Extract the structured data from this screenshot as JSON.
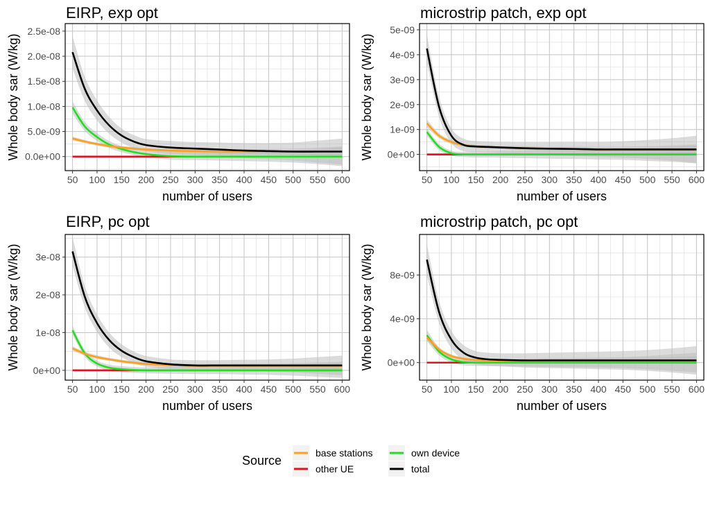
{
  "legend": {
    "title": "Source",
    "entries": [
      {
        "label": "base stations",
        "color": "#FF9F1A"
      },
      {
        "label": "other UE",
        "color": "#E8111B"
      },
      {
        "label": "own device",
        "color": "#1EE01E"
      },
      {
        "label": "total",
        "color": "#000000"
      }
    ]
  },
  "chart_data": [
    {
      "type": "line",
      "title": "EIRP, exp opt",
      "xlabel": "number of users",
      "ylabel": "Whole body sar (W/kg)",
      "xlim": [
        35,
        615
      ],
      "ylim": [
        -2.8e-09,
        2.65e-08
      ],
      "x_ticks": [
        50,
        100,
        150,
        200,
        250,
        300,
        350,
        400,
        450,
        500,
        550,
        600
      ],
      "y_ticks": [
        0,
        5e-09,
        1e-08,
        1.5e-08,
        2e-08,
        2.5e-08
      ],
      "y_tick_labels": [
        "0.0e+00",
        "5.0e-09",
        "1.0e-08",
        "1.5e-08",
        "2.0e-08",
        "2.5e-08"
      ],
      "x": [
        50,
        75,
        100,
        125,
        150,
        175,
        200,
        250,
        300,
        350,
        400,
        450,
        500,
        550,
        600
      ],
      "series": [
        {
          "name": "base stations",
          "values": [
            3.6e-09,
            3e-09,
            2.5e-09,
            2.1e-09,
            1.8e-09,
            1.6e-09,
            1.4e-09,
            1.2e-09,
            1.1e-09,
            1e-09,
            1e-09,
            1e-09,
            1e-09,
            1e-09,
            1e-09
          ],
          "band": [
            4e-10,
            3e-10,
            3e-10,
            3e-10,
            3e-10,
            3e-10,
            3e-10,
            4e-10,
            4e-10,
            4e-10,
            5e-10,
            5e-10,
            6e-10,
            8e-10,
            1e-09
          ]
        },
        {
          "name": "other UE",
          "values": [
            0,
            0,
            0,
            0,
            0,
            0,
            0,
            0,
            0,
            0,
            0,
            0,
            0,
            0,
            0
          ],
          "band": [
            2e-10,
            2e-10,
            2e-10,
            2e-10,
            2e-10,
            2e-10,
            2e-10,
            2e-10,
            2e-10,
            2e-10,
            2e-10,
            2e-10,
            2e-10,
            2e-10,
            2e-10
          ]
        },
        {
          "name": "own device",
          "values": [
            9.8e-09,
            6e-09,
            3.9e-09,
            2.4e-09,
            1.5e-09,
            9e-10,
            5e-10,
            1e-10,
            0,
            0,
            0,
            0,
            0,
            0,
            0
          ],
          "band": [
            1.2e-09,
            9e-10,
            8e-10,
            7e-10,
            6e-10,
            6e-10,
            6e-10,
            7e-10,
            7e-10,
            8e-10,
            9e-10,
            1e-09,
            1.2e-09,
            1.5e-09,
            1.9e-09
          ]
        },
        {
          "name": "total",
          "values": [
            2.08e-08,
            1.35e-08,
            9.2e-09,
            6.2e-09,
            4.2e-09,
            3e-09,
            2.3e-09,
            1.8e-09,
            1.6e-09,
            1.4e-09,
            1.2e-09,
            1.1e-09,
            1e-09,
            1e-09,
            1e-09
          ],
          "band": [
            3.2e-09,
            2.4e-09,
            2e-09,
            1.7e-09,
            1.4e-09,
            1.3e-09,
            1.2e-09,
            1.3e-09,
            1.3e-09,
            1.4e-09,
            1.5e-09,
            1.6e-09,
            1.8e-09,
            2.2e-09,
            2.6e-09
          ]
        }
      ]
    },
    {
      "type": "line",
      "title": "microstrip patch, exp opt",
      "xlabel": "number of users",
      "ylabel": "Whole body sar (W/kg)",
      "xlim": [
        35,
        615
      ],
      "ylim": [
        -6.5e-10,
        5.25e-09
      ],
      "x_ticks": [
        50,
        100,
        150,
        200,
        250,
        300,
        350,
        400,
        450,
        500,
        550,
        600
      ],
      "y_ticks": [
        0,
        1e-09,
        2e-09,
        3e-09,
        4e-09,
        5e-09
      ],
      "y_tick_labels": [
        "0e+00",
        "1e-09",
        "2e-09",
        "3e-09",
        "4e-09",
        "5e-09"
      ],
      "x": [
        50,
        75,
        100,
        125,
        150,
        175,
        200,
        250,
        300,
        350,
        400,
        450,
        500,
        550,
        600
      ],
      "series": [
        {
          "name": "base stations",
          "values": [
            1.25e-09,
            7.5e-10,
            5e-10,
            3.8e-10,
            3.2e-10,
            3e-10,
            2.8e-10,
            2.5e-10,
            2.3e-10,
            2.2e-10,
            2e-10,
            2e-10,
            2e-10,
            2e-10,
            2e-10
          ],
          "band": [
            1.5e-10,
            1e-10,
            8e-11,
            7e-11,
            7e-11,
            7e-11,
            7e-11,
            8e-11,
            8e-11,
            9e-11,
            1e-10,
            1.1e-10,
            1.3e-10,
            1.6e-10,
            2e-10
          ]
        },
        {
          "name": "other UE",
          "values": [
            0,
            0,
            0,
            0,
            0,
            0,
            0,
            0,
            0,
            0,
            0,
            0,
            0,
            0,
            0
          ],
          "band": [
            5e-11,
            5e-11,
            5e-11,
            5e-11,
            5e-11,
            5e-11,
            5e-11,
            5e-11,
            5e-11,
            5e-11,
            5e-11,
            5e-11,
            5e-11,
            5e-11,
            5e-11
          ]
        },
        {
          "name": "own device",
          "values": [
            9e-10,
            3e-10,
            5e-11,
            0,
            0,
            0,
            0,
            0,
            0,
            0,
            0,
            0,
            0,
            0,
            0
          ],
          "band": [
            1.5e-10,
            1.2e-10,
            1e-10,
            1e-10,
            1.2e-10,
            1.2e-10,
            1.3e-10,
            1.5e-10,
            1.7e-10,
            1.8e-10,
            2e-10,
            2.2e-10,
            2.6e-10,
            3e-10,
            3.6e-10
          ]
        },
        {
          "name": "total",
          "values": [
            4.25e-09,
            1.9e-09,
            7.5e-10,
            3.8e-10,
            3.2e-10,
            3e-10,
            2.8e-10,
            2.5e-10,
            2.3e-10,
            2.2e-10,
            2e-10,
            2e-10,
            2e-10,
            2e-10,
            2e-10
          ],
          "band": [
            5.5e-10,
            4e-10,
            3e-10,
            2.5e-10,
            2.2e-10,
            2.2e-10,
            2.2e-10,
            2.4e-10,
            2.6e-10,
            2.8e-10,
            3e-10,
            3.3e-10,
            3.8e-10,
            4.5e-10,
            5.5e-10
          ]
        }
      ]
    },
    {
      "type": "line",
      "title": "EIRP, pc opt",
      "xlabel": "number of users",
      "ylabel": "Whole body sar (W/kg)",
      "xlim": [
        35,
        615
      ],
      "ylim": [
        -2.6e-09,
        3.6e-08
      ],
      "x_ticks": [
        50,
        100,
        150,
        200,
        250,
        300,
        350,
        400,
        450,
        500,
        550,
        600
      ],
      "y_ticks": [
        0,
        1e-08,
        2e-08,
        3e-08
      ],
      "y_tick_labels": [
        "0e+00",
        "1e-08",
        "2e-08",
        "3e-08"
      ],
      "x": [
        50,
        75,
        100,
        125,
        150,
        175,
        200,
        250,
        300,
        350,
        400,
        450,
        500,
        550,
        600
      ],
      "series": [
        {
          "name": "base stations",
          "values": [
            5.8e-09,
            4.4e-09,
            3.5e-09,
            2.9e-09,
            2.4e-09,
            2e-09,
            1.7e-09,
            1.4e-09,
            1.2e-09,
            1.2e-09,
            1.2e-09,
            1.2e-09,
            1.2e-09,
            1.2e-09,
            1.2e-09
          ],
          "band": [
            6e-10,
            5e-10,
            5e-10,
            4e-10,
            4e-10,
            4e-10,
            4e-10,
            5e-10,
            5e-10,
            5e-10,
            6e-10,
            6e-10,
            7e-10,
            9e-10,
            1.1e-09
          ]
        },
        {
          "name": "other UE",
          "values": [
            0,
            0,
            0,
            0,
            0,
            0,
            0,
            0,
            0,
            0,
            0,
            0,
            0,
            0,
            0
          ],
          "band": [
            2e-10,
            2e-10,
            2e-10,
            2e-10,
            2e-10,
            2e-10,
            2e-10,
            2e-10,
            2e-10,
            2e-10,
            2e-10,
            2e-10,
            2e-10,
            2e-10,
            2e-10
          ]
        },
        {
          "name": "own device",
          "values": [
            1.06e-08,
            4.5e-09,
            1.8e-09,
            7e-10,
            3e-10,
            1e-10,
            0,
            0,
            0,
            0,
            0,
            0,
            0,
            0,
            0
          ],
          "band": [
            1.2e-09,
            9e-10,
            8e-10,
            8e-10,
            8e-10,
            8e-10,
            8e-10,
            9e-10,
            1e-09,
            1e-09,
            1.1e-09,
            1.2e-09,
            1.4e-09,
            1.7e-09,
            2e-09
          ]
        },
        {
          "name": "total",
          "values": [
            3.15e-08,
            1.95e-08,
            1.25e-08,
            8e-09,
            5.2e-09,
            3.5e-09,
            2.4e-09,
            1.6e-09,
            1.3e-09,
            1.3e-09,
            1.3e-09,
            1.3e-09,
            1.3e-09,
            1.3e-09,
            1.3e-09
          ],
          "band": [
            3.8e-09,
            2.8e-09,
            2.3e-09,
            2e-09,
            1.7e-09,
            1.5e-09,
            1.4e-09,
            1.3e-09,
            1.4e-09,
            1.4e-09,
            1.5e-09,
            1.6e-09,
            1.8e-09,
            2.2e-09,
            2.6e-09
          ]
        }
      ]
    },
    {
      "type": "line",
      "title": "microstrip patch, pc opt",
      "xlabel": "number of users",
      "ylabel": "Whole body sar (W/kg)",
      "xlim": [
        35,
        615
      ],
      "ylim": [
        -1.6e-09,
        1.17e-08
      ],
      "x_ticks": [
        50,
        100,
        150,
        200,
        250,
        300,
        350,
        400,
        450,
        500,
        550,
        600
      ],
      "y_ticks": [
        0,
        4e-09,
        8e-09
      ],
      "y_tick_labels": [
        "0e+00",
        "4e-09",
        "8e-09"
      ],
      "x": [
        50,
        75,
        100,
        125,
        150,
        175,
        200,
        250,
        300,
        350,
        400,
        450,
        500,
        550,
        600
      ],
      "series": [
        {
          "name": "base stations",
          "values": [
            2.3e-09,
            1.2e-09,
            6e-10,
            3.5e-10,
            2.5e-10,
            2e-10,
            2e-10,
            2e-10,
            2e-10,
            2e-10,
            2e-10,
            2e-10,
            2e-10,
            2e-10,
            2e-10
          ],
          "band": [
            3e-10,
            2e-10,
            1.5e-10,
            1.2e-10,
            1.2e-10,
            1.2e-10,
            1.2e-10,
            1.4e-10,
            1.5e-10,
            1.6e-10,
            1.8e-10,
            2e-10,
            2.4e-10,
            3e-10,
            3.8e-10
          ]
        },
        {
          "name": "other UE",
          "values": [
            0,
            0,
            0,
            0,
            0,
            0,
            0,
            0,
            0,
            0,
            0,
            0,
            0,
            0,
            0
          ],
          "band": [
            8e-11,
            8e-11,
            8e-11,
            8e-11,
            8e-11,
            8e-11,
            8e-11,
            8e-11,
            8e-11,
            8e-11,
            8e-11,
            8e-11,
            8e-11,
            8e-11,
            8e-11
          ]
        },
        {
          "name": "own device",
          "values": [
            2.5e-09,
            1e-09,
            3e-10,
            5e-11,
            0,
            0,
            0,
            0,
            0,
            0,
            0,
            0,
            0,
            0,
            0
          ],
          "band": [
            5e-10,
            3.5e-10,
            3e-10,
            3e-10,
            3e-10,
            3e-10,
            3e-10,
            3.5e-10,
            4e-10,
            4.2e-10,
            4.5e-10,
            5e-10,
            6e-10,
            7.5e-10,
            9e-10
          ]
        },
        {
          "name": "total",
          "values": [
            9.4e-09,
            4.6e-09,
            2.1e-09,
            9e-10,
            4.5e-10,
            3e-10,
            2.5e-10,
            2e-10,
            2e-10,
            2e-10,
            2e-10,
            2e-10,
            2e-10,
            2e-10,
            2e-10
          ],
          "band": [
            1.4e-09,
            1e-09,
            8e-10,
            7e-10,
            6e-10,
            6e-10,
            6e-10,
            6.5e-10,
            7e-10,
            7.5e-10,
            8e-10,
            8.5e-10,
            9.5e-10,
            1.1e-09,
            1.3e-09
          ]
        }
      ]
    }
  ]
}
